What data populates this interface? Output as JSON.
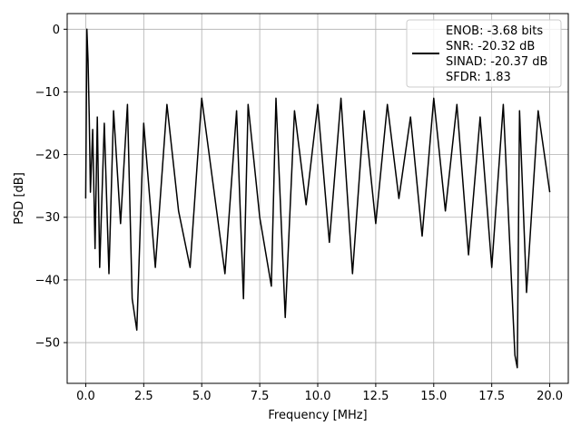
{
  "chart_data": {
    "type": "line",
    "title": "",
    "xlabel": "Frequency [MHz]",
    "ylabel": "PSD [dB]",
    "xlim": [
      -0.8,
      20.8
    ],
    "ylim": [
      -56.5,
      2.5
    ],
    "xticks": [
      0.0,
      2.5,
      5.0,
      7.5,
      10.0,
      12.5,
      15.0,
      17.5,
      20.0
    ],
    "xtick_labels": [
      "0.0",
      "2.5",
      "5.0",
      "7.5",
      "10.0",
      "12.5",
      "15.0",
      "17.5",
      "20.0"
    ],
    "yticks": [
      0,
      -10,
      -20,
      -30,
      -40,
      -50
    ],
    "ytick_labels": [
      "0",
      "−10",
      "−20",
      "−30",
      "−40",
      "−50"
    ],
    "grid": true,
    "legend_position": "top-right",
    "line_color": "#000000",
    "series": [
      {
        "x": [
          0.0,
          0.05,
          0.1,
          0.15,
          0.2,
          0.3,
          0.4,
          0.5,
          0.6,
          0.8,
          1.0,
          1.2,
          1.5,
          1.8,
          2.0,
          2.2,
          2.5,
          3.0,
          3.5,
          4.0,
          4.5,
          5.0,
          5.5,
          6.0,
          6.5,
          6.8,
          7.0,
          7.5,
          8.0,
          8.2,
          8.6,
          9.0,
          9.5,
          10.0,
          10.5,
          11.0,
          11.5,
          12.0,
          12.5,
          13.0,
          13.5,
          14.0,
          14.5,
          15.0,
          15.5,
          16.0,
          16.5,
          17.0,
          17.5,
          18.0,
          18.5,
          18.6,
          18.7,
          19.0,
          19.5,
          20.0
        ],
        "y": [
          -27,
          0,
          -5,
          -14,
          -26,
          -16,
          -35,
          -14,
          -38,
          -15,
          -39,
          -13,
          -31,
          -12,
          -43,
          -48,
          -15,
          -38,
          -12,
          -29,
          -38,
          -11,
          -25,
          -39,
          -13,
          -43,
          -12,
          -30,
          -41,
          -11,
          -46,
          -13,
          -28,
          -12,
          -34,
          -11,
          -39,
          -13,
          -31,
          -12,
          -27,
          -14,
          -33,
          -11,
          -29,
          -12,
          -36,
          -14,
          -38,
          -12,
          -52,
          -54,
          -13,
          -42,
          -13,
          -26
        ]
      }
    ],
    "legend": {
      "entries": [
        "ENOB: -3.68 bits",
        "SNR: -20.32 dB",
        "SINAD: -20.37 dB",
        "SFDR: 1.83"
      ]
    }
  }
}
